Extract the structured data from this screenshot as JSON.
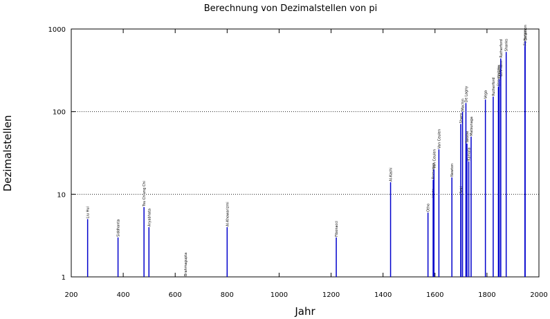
{
  "chart_data": {
    "type": "impulse",
    "title": "Berechnung von Dezimalstellen von pi",
    "x_label": "Jahr",
    "y_label": "Dezimalstellen",
    "color": "#0000cc",
    "log_y": true,
    "grid": true,
    "xlim": [
      200,
      2000
    ],
    "xticks": [
      200,
      400,
      600,
      800,
      1000,
      1200,
      1400,
      1600,
      1800,
      2000
    ],
    "ylim": [
      1,
      1000
    ],
    "yticks": [
      1,
      10,
      100,
      1000
    ],
    "x": [
      263,
      380,
      480,
      499,
      640,
      800,
      1220,
      1429,
      1573,
      1593,
      1593,
      1596,
      1615,
      1665,
      1699,
      1700,
      1706,
      1719,
      1723,
      1730,
      1739,
      1794,
      1824,
      1844,
      1847,
      1853,
      1853,
      1874,
      1946,
      1947
    ],
    "values": [
      5,
      3,
      7,
      4,
      1,
      4,
      3,
      14,
      6,
      9,
      15,
      20,
      35,
      16,
      71,
      10,
      100,
      127,
      41,
      25,
      50,
      140,
      152,
      200,
      248,
      261,
      440,
      527,
      620,
      710
    ],
    "labels": [
      "Liu Hui",
      "Siddhanta",
      "Tsu Ch'ung Chi",
      "Aryabhata",
      "Brahmagupta",
      "Al-Khowarizmi",
      "Fibonacci",
      "Al-Kashi",
      "Otho",
      "Viete",
      "Romanus",
      "Van Ceulen",
      "Van Ceulen",
      "Newton",
      "Sharp",
      "Seki",
      "Machin",
      "De Lagny",
      "Takebe",
      "Kamata",
      "Matsunaga",
      "Vega",
      "Rutherford",
      "Strassnitzky",
      "Clausen",
      "Lehmann",
      "Rutherford",
      "Shanks",
      "Ferguson",
      "Ferguson"
    ]
  }
}
